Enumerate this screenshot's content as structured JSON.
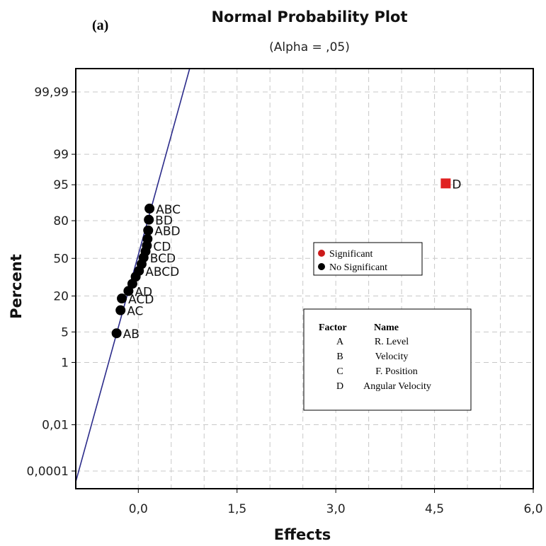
{
  "panel_label": "(a)",
  "chart_data": {
    "type": "scatter",
    "title": "Normal Probability Plot",
    "subtitle": "(Alpha = ,05)",
    "xlabel": "Effects",
    "ylabel": "Percent",
    "xlim": [
      -0.95,
      6.0
    ],
    "x_ticks": [
      0.0,
      1.5,
      3.0,
      4.5,
      6.0
    ],
    "x_tick_labels": [
      "0,0",
      "1,5",
      "3,0",
      "4,5",
      "6,0"
    ],
    "y_ticks": [
      "0,0001",
      "0,01",
      "1",
      "5",
      "20",
      "50",
      "80",
      "95",
      "99",
      "99,99"
    ],
    "y_scale": "normal-probability",
    "grid": true,
    "reference_line": {
      "from": [
        -0.95,
        3e-05
      ],
      "to": [
        0.78,
        99.999
      ]
    },
    "series": [
      {
        "name": "No Significant",
        "color": "#000000",
        "marker": "circle",
        "points": [
          {
            "label": "AB",
            "x": -0.33,
            "y": 4.7
          },
          {
            "label": "AC",
            "x": -0.27,
            "y": 12.3
          },
          {
            "label": "ACD",
            "x": -0.25,
            "y": 18.5
          },
          {
            "label": "AD",
            "x": -0.15,
            "y": 23.3
          },
          {
            "label": "",
            "x": -0.09,
            "y": 28.5
          },
          {
            "label": "",
            "x": -0.04,
            "y": 34.1
          },
          {
            "label": "ABCD",
            "x": 0.01,
            "y": 39.0
          },
          {
            "label": "",
            "x": 0.05,
            "y": 44.9
          },
          {
            "label": "BCD",
            "x": 0.08,
            "y": 50.7
          },
          {
            "label": "",
            "x": 0.11,
            "y": 56.2
          },
          {
            "label": "CD",
            "x": 0.13,
            "y": 61.2
          },
          {
            "label": "",
            "x": 0.14,
            "y": 66.8
          },
          {
            "label": "ABD",
            "x": 0.15,
            "y": 73.4
          },
          {
            "label": "BD",
            "x": 0.16,
            "y": 80.6
          },
          {
            "label": "ABC",
            "x": 0.17,
            "y": 86.7
          }
        ]
      },
      {
        "name": "Significant",
        "color": "#e02020",
        "marker": "square",
        "points": [
          {
            "label": "D",
            "x": 4.67,
            "y": 95.3
          }
        ]
      }
    ],
    "legend": {
      "position": "center-right",
      "entries": [
        {
          "label": "Significant",
          "color": "#cc1a1a"
        },
        {
          "label": "No Significant",
          "color": "#000000"
        }
      ]
    }
  },
  "factor_table": {
    "header_factor": "Factor",
    "header_name": "Name",
    "rows": [
      {
        "factor": "A",
        "name": "R. Level"
      },
      {
        "factor": "B",
        "name": "Velocity"
      },
      {
        "factor": "C",
        "name": "F. Position"
      },
      {
        "factor": "D",
        "name": "Angular Velocity"
      }
    ]
  },
  "colors": {
    "line": "#2b2b8a",
    "grid": "#c8c8c8"
  }
}
